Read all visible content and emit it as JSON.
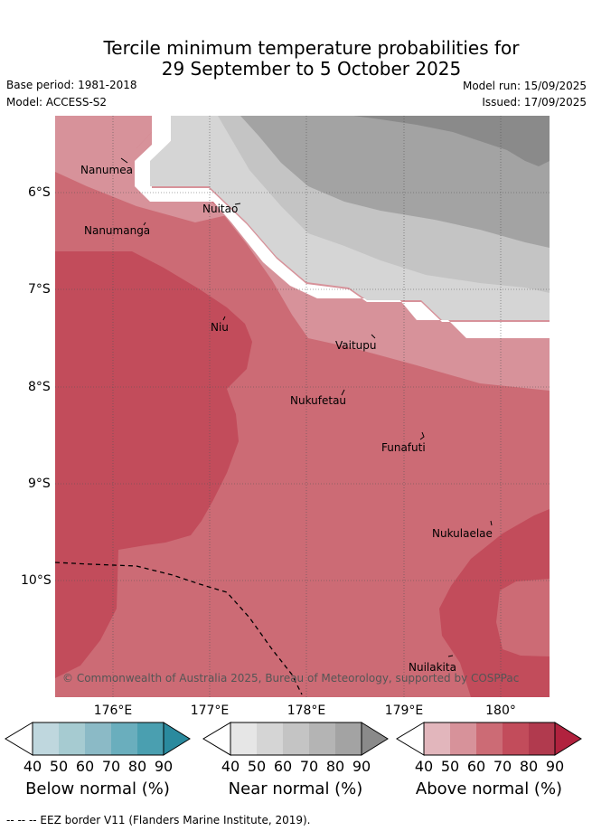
{
  "title": {
    "line1": "Tercile minimum temperature probabilities for",
    "line2": "29 September to 5 October 2025"
  },
  "meta": {
    "base_period": "Base period: 1981-2018",
    "model": "Model: ACCESS-S2",
    "model_run": "Model run: 15/09/2025",
    "issued": "Issued: 17/09/2025"
  },
  "map": {
    "lon_labels": [
      "176°E",
      "177°E",
      "178°E",
      "179°E",
      "180°"
    ],
    "lat_labels": [
      "6°S",
      "7°S",
      "8°S",
      "9°S",
      "10°S"
    ],
    "places": [
      "Nanumea",
      "Nuitao",
      "Nanumanga",
      "Niu",
      "Vaitupu",
      "Nukufetau",
      "Funafuti",
      "Nukulaelae",
      "Nuilakita"
    ],
    "copyright": "© Commonwealth of Australia 2025, Bureau of Meteorology, supported by COSPPac"
  },
  "colorbars": [
    {
      "title": "Below normal (%)",
      "ticks": [
        "40",
        "50",
        "60",
        "70",
        "80",
        "90"
      ],
      "colors": [
        "#bfd7de",
        "#a6cbd1",
        "#8bbac6",
        "#6aaebd",
        "#4a9fb0",
        "#2a8a9e"
      ]
    },
    {
      "title": "Near normal (%)",
      "ticks": [
        "40",
        "50",
        "60",
        "70",
        "80",
        "90"
      ],
      "colors": [
        "#e6e6e6",
        "#d5d5d5",
        "#c4c4c4",
        "#b4b4b4",
        "#a3a3a3",
        "#8a8a8a"
      ]
    },
    {
      "title": "Above normal (%)",
      "ticks": [
        "40",
        "50",
        "60",
        "70",
        "80",
        "90"
      ],
      "colors": [
        "#e2b6bc",
        "#d7929a",
        "#cc6b75",
        "#c24c5b",
        "#b13a4e",
        "#b1223e"
      ]
    }
  ],
  "footer": "--  --  -- EEZ border V11 (Flanders Marine Institute, 2019)."
}
